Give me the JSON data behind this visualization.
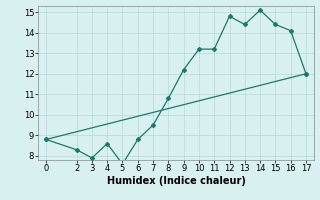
{
  "line1_x": [
    0,
    2,
    3,
    4,
    5,
    6,
    7,
    8,
    9,
    10,
    11,
    12,
    13,
    14,
    15,
    16,
    17
  ],
  "line1_y": [
    8.8,
    8.3,
    7.9,
    8.6,
    7.6,
    8.8,
    9.5,
    10.8,
    12.2,
    13.2,
    13.2,
    14.8,
    14.4,
    15.1,
    14.4,
    14.1,
    12.0
  ],
  "line2_x": [
    0,
    17
  ],
  "line2_y": [
    8.8,
    12.0
  ],
  "line_color": "#1a7a6a",
  "bg_color": "#d8f0ef",
  "grid_color": "#b8d8d8",
  "xlabel": "Humidex (Indice chaleur)",
  "xlim": [
    -0.5,
    17.5
  ],
  "ylim": [
    7.8,
    15.3
  ],
  "xticks": [
    0,
    2,
    3,
    4,
    5,
    6,
    7,
    8,
    9,
    10,
    11,
    12,
    13,
    14,
    15,
    16,
    17
  ],
  "yticks": [
    8,
    9,
    10,
    11,
    12,
    13,
    14,
    15
  ],
  "marker": "D",
  "markersize": 2.0,
  "linewidth": 0.9,
  "xlabel_fontsize": 7.0,
  "tick_fontsize": 6.0
}
